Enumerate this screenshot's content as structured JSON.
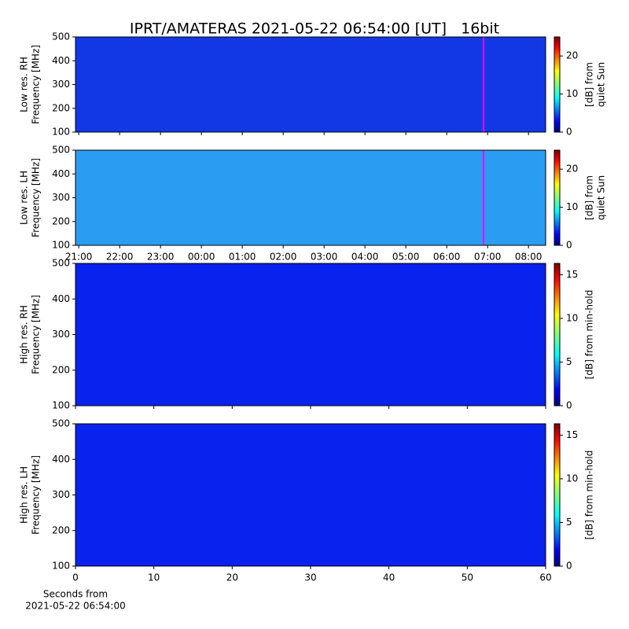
{
  "chart_data": [
    {
      "type": "heatmap",
      "title": "IPRT/AMATERAS 2021-05-22 06:54:00 [UT]   16bit",
      "ylabel": [
        "Low res. RH",
        "Frequency [MHz]"
      ],
      "ylim": [
        100,
        500
      ],
      "yticks": [
        100,
        200,
        300,
        400,
        500
      ],
      "xlim": [
        20.92,
        32.42
      ],
      "xticks": [
        21,
        22,
        23,
        24,
        25,
        26,
        27,
        28,
        29,
        30,
        31,
        32
      ],
      "xtick_labels": false,
      "marker_line": {
        "x": 30.9,
        "color": "#ff00ff"
      },
      "fill": "#1238e6",
      "colormap": "jet",
      "clabel": [
        "[dB] from",
        "quiet Sun"
      ],
      "clim": [
        0,
        25
      ],
      "cticks": [
        0,
        10,
        20
      ]
    },
    {
      "type": "heatmap",
      "ylabel": [
        "Low res. LH",
        "Frequency [MHz]"
      ],
      "ylim": [
        100,
        500
      ],
      "yticks": [
        100,
        200,
        300,
        400,
        500
      ],
      "xlim": [
        20.92,
        32.42
      ],
      "xticks": [
        {
          "value": 21,
          "label": "21:00"
        },
        {
          "value": 22,
          "label": "22:00"
        },
        {
          "value": 23,
          "label": "23:00"
        },
        {
          "value": 24,
          "label": "00:00"
        },
        {
          "value": 25,
          "label": "01:00"
        },
        {
          "value": 26,
          "label": "02:00"
        },
        {
          "value": 27,
          "label": "03:00"
        },
        {
          "value": 28,
          "label": "04:00"
        },
        {
          "value": 29,
          "label": "05:00"
        },
        {
          "value": 30,
          "label": "06:00"
        },
        {
          "value": 31,
          "label": "07:00"
        },
        {
          "value": 32,
          "label": "08:00"
        }
      ],
      "xtick_labels": true,
      "marker_line": {
        "x": 30.9,
        "color": "#ff00ff"
      },
      "fill": "#2a9cf2",
      "colormap": "jet",
      "clabel": [
        "[dB] from",
        "quiet Sun"
      ],
      "clim": [
        0,
        25
      ],
      "cticks": [
        0,
        10,
        20
      ]
    },
    {
      "type": "heatmap",
      "ylabel": [
        "High res. RH",
        "Frequency [MHz]"
      ],
      "ylim": [
        100,
        500
      ],
      "yticks": [
        100,
        200,
        300,
        400,
        500
      ],
      "xlim": [
        0,
        60
      ],
      "xticks": [
        0,
        10,
        20,
        30,
        40,
        50,
        60
      ],
      "xtick_labels": false,
      "fill": "#0a22ee",
      "colormap": "jet",
      "clabel": [
        "[dB] from min-hold"
      ],
      "clim": [
        0,
        16.3
      ],
      "cticks": [
        0,
        5,
        10,
        15
      ]
    },
    {
      "type": "heatmap",
      "ylabel": [
        "High res. LH",
        "Frequency [MHz]"
      ],
      "ylim": [
        100,
        500
      ],
      "yticks": [
        100,
        200,
        300,
        400,
        500
      ],
      "xlim": [
        0,
        60
      ],
      "xticks": [
        0,
        10,
        20,
        30,
        40,
        50,
        60
      ],
      "xtick_labels": true,
      "xlabel": [
        "Seconds from",
        "2021-05-22 06:54:00"
      ],
      "fill": "#0a22ee",
      "colormap": "jet",
      "clabel": [
        "[dB] from min-hold"
      ],
      "clim": [
        0,
        16.3
      ],
      "cticks": [
        0,
        5,
        10,
        15
      ]
    }
  ]
}
